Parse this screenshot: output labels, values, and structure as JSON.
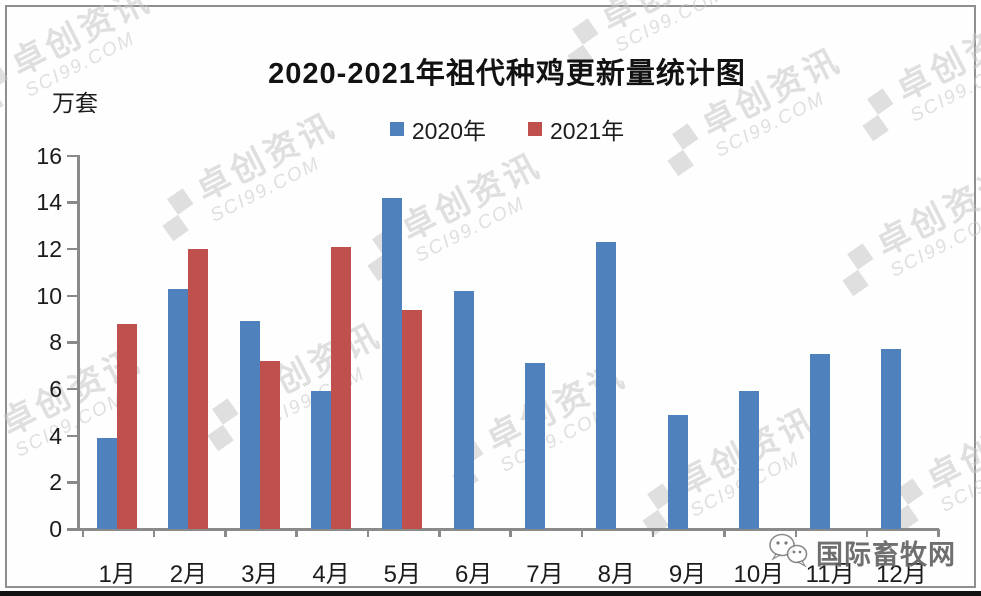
{
  "watermark": {
    "brand": "卓创资讯",
    "domain": "SCI99.COM"
  },
  "stamp": {
    "text": "国际畜牧网",
    "icon": "wechat-icon"
  },
  "chart_data": {
    "type": "bar",
    "title": "2020-2021年祖代种鸡更新量统计图",
    "unit_label": "万套",
    "xlabel": "",
    "ylabel": "万套",
    "categories": [
      "1月",
      "2月",
      "3月",
      "4月",
      "5月",
      "6月",
      "7月",
      "8月",
      "9月",
      "10月",
      "11月",
      "12月"
    ],
    "series": [
      {
        "name": "2020年",
        "color": "#4f81bd",
        "values": [
          3.9,
          10.3,
          8.9,
          5.9,
          14.2,
          10.2,
          7.1,
          12.3,
          4.9,
          5.9,
          7.5,
          7.7
        ]
      },
      {
        "name": "2021年",
        "color": "#c0504d",
        "values": [
          8.8,
          12.0,
          7.2,
          12.1,
          9.4,
          null,
          null,
          null,
          null,
          null,
          null,
          null
        ]
      }
    ],
    "ylim": [
      0,
      16
    ],
    "ytick_step": 2,
    "legend_position": "top-center",
    "grid": false
  }
}
